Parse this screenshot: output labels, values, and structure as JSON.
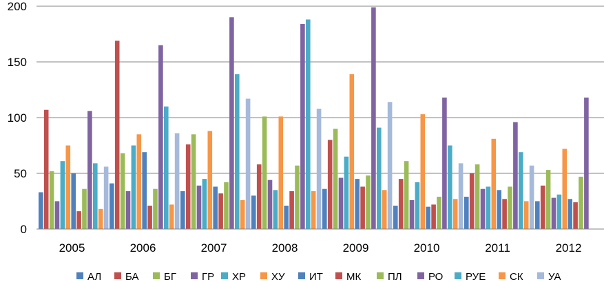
{
  "chart_data": {
    "type": "bar",
    "categories": [
      "2005",
      "2006",
      "2007",
      "2008",
      "2009",
      "2010",
      "2011",
      "2012"
    ],
    "ylim": [
      0,
      200
    ],
    "yticks": [
      0,
      50,
      100,
      150,
      200
    ],
    "grid": "horizontal",
    "legend_position": "bottom",
    "series": [
      {
        "name": "АЛ",
        "color": "#4F81BD",
        "values": [
          33,
          41,
          34,
          30,
          36,
          21,
          29,
          25
        ]
      },
      {
        "name": "БА",
        "color": "#C0504D",
        "values": [
          107,
          169,
          76,
          58,
          80,
          45,
          50,
          39
        ]
      },
      {
        "name": "БГ",
        "color": "#9BBB59",
        "values": [
          52,
          68,
          85,
          101,
          90,
          61,
          58,
          53
        ]
      },
      {
        "name": "ГР",
        "color": "#8064A2",
        "values": [
          25,
          34,
          39,
          44,
          46,
          26,
          36,
          28
        ]
      },
      {
        "name": "ХР",
        "color": "#4BACC6",
        "values": [
          61,
          75,
          45,
          35,
          65,
          42,
          38,
          31
        ]
      },
      {
        "name": "ХУ",
        "color": "#F79646",
        "values": [
          75,
          85,
          88,
          101,
          139,
          103,
          81,
          72
        ]
      },
      {
        "name": "ИТ",
        "color": "#4F81BD",
        "values": [
          50,
          69,
          38,
          21,
          45,
          20,
          35,
          27
        ]
      },
      {
        "name": "МК",
        "color": "#C0504D",
        "values": [
          16,
          21,
          32,
          34,
          38,
          22,
          27,
          24
        ]
      },
      {
        "name": "ПЛ",
        "color": "#9BBB59",
        "values": [
          36,
          36,
          42,
          57,
          48,
          29,
          38,
          47
        ]
      },
      {
        "name": "РО",
        "color": "#8064A2",
        "values": [
          106,
          165,
          190,
          184,
          199,
          118,
          96,
          118
        ]
      },
      {
        "name": "РУЕ",
        "color": "#4BACC6",
        "values": [
          59,
          110,
          139,
          188,
          91,
          75,
          69,
          null
        ]
      },
      {
        "name": "СК",
        "color": "#F79646",
        "values": [
          18,
          22,
          26,
          34,
          35,
          27,
          25,
          null
        ]
      },
      {
        "name": "УА",
        "color": "#A5B9DA",
        "values": [
          56,
          86,
          117,
          108,
          114,
          59,
          57,
          null
        ]
      }
    ]
  }
}
